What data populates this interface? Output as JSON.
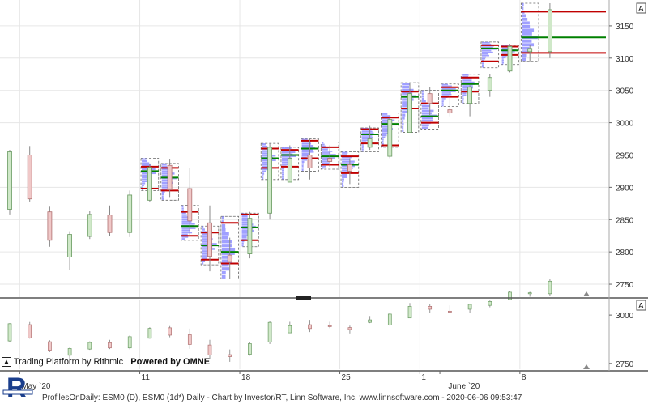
{
  "footer_text": "ProfilesOnDaily: ESM0 (D), ESM0 (1d*) Daily - Chart by Investor/RT, Linn Software, Inc. www.linnsoftware.com - 2020-06-06 09:53:47",
  "brand": {
    "rithmic": "Trading Platform by Rithmic",
    "omne": "Powered by OMNE"
  },
  "logo_letter": "R",
  "colors": {
    "up": "#cfe8c8",
    "down": "#f0c8c8",
    "profile": "#8080ff",
    "poc": "#008000",
    "va": "#c00000",
    "grid": "#e6e6e6"
  },
  "chart_data": [
    {
      "type": "candlestick",
      "ylim": [
        2730,
        3190
      ],
      "yticks": [
        2750,
        2800,
        2850,
        2900,
        2950,
        3000,
        3050,
        3100,
        3150
      ],
      "xlabels": [
        {
          "label": "May `20",
          "idx": 1
        },
        {
          "label": "11",
          "idx": 7
        },
        {
          "label": "18",
          "idx": 12
        },
        {
          "label": "25",
          "idx": 17
        },
        {
          "label": "1",
          "idx": 21
        },
        {
          "label": "June `20",
          "idx": 22
        },
        {
          "label": "8",
          "idx": 26
        }
      ],
      "candles": [
        {
          "o": 2866,
          "h": 2958,
          "l": 2858,
          "c": 2955
        },
        {
          "o": 2950,
          "h": 2964,
          "l": 2878,
          "c": 2882
        },
        {
          "o": 2862,
          "h": 2870,
          "l": 2808,
          "c": 2818
        },
        {
          "o": 2792,
          "h": 2832,
          "l": 2772,
          "c": 2827
        },
        {
          "o": 2824,
          "h": 2864,
          "l": 2820,
          "c": 2858
        },
        {
          "o": 2857,
          "h": 2872,
          "l": 2824,
          "c": 2830
        },
        {
          "o": 2830,
          "h": 2895,
          "l": 2823,
          "c": 2888
        },
        {
          "o": 2880,
          "h": 2937,
          "l": 2878,
          "c": 2931
        },
        {
          "o": 2934,
          "h": 2943,
          "l": 2885,
          "c": 2896
        },
        {
          "o": 2898,
          "h": 2930,
          "l": 2825,
          "c": 2848
        },
        {
          "o": 2845,
          "h": 2872,
          "l": 2770,
          "c": 2793
        },
        {
          "o": 2795,
          "h": 2822,
          "l": 2758,
          "c": 2785
        },
        {
          "o": 2797,
          "h": 2862,
          "l": 2790,
          "c": 2852
        },
        {
          "o": 2860,
          "h": 2968,
          "l": 2850,
          "c": 2962
        },
        {
          "o": 2908,
          "h": 2965,
          "l": 2908,
          "c": 2945
        },
        {
          "o": 2950,
          "h": 2975,
          "l": 2912,
          "c": 2930
        },
        {
          "o": 2945,
          "h": 2965,
          "l": 2932,
          "c": 2940
        },
        {
          "o": 2935,
          "h": 2945,
          "l": 2905,
          "c": 2925
        },
        {
          "o": 2962,
          "h": 2995,
          "l": 2958,
          "c": 2975
        },
        {
          "o": 2948,
          "h": 3010,
          "l": 2945,
          "c": 3005
        },
        {
          "o": 2985,
          "h": 3062,
          "l": 2985,
          "c": 3045
        },
        {
          "o": 3045,
          "h": 3055,
          "l": 3012,
          "c": 3030
        },
        {
          "o": 3020,
          "h": 3050,
          "l": 3010,
          "c": 3015
        },
        {
          "o": 3030,
          "h": 3058,
          "l": 3010,
          "c": 3055
        },
        {
          "o": 3050,
          "h": 3075,
          "l": 3040,
          "c": 3070
        },
        {
          "o": 3080,
          "h": 3122,
          "l": 3078,
          "c": 3118
        },
        {
          "o": 3110,
          "h": 3120,
          "l": 3095,
          "c": 3115
        },
        {
          "o": 3110,
          "h": 3185,
          "l": 3100,
          "c": 3175
        }
      ],
      "profiles": [
        {
          "idx": 7,
          "top": 2945,
          "bot": 2895,
          "vah": 2932,
          "poc": 2925,
          "val": 2898
        },
        {
          "idx": 8,
          "top": 2937,
          "bot": 2880,
          "vah": 2930,
          "poc": 2915,
          "val": 2895
        },
        {
          "idx": 9,
          "top": 2872,
          "bot": 2818,
          "vah": 2862,
          "poc": 2840,
          "val": 2825
        },
        {
          "idx": 10,
          "top": 2840,
          "bot": 2780,
          "vah": 2830,
          "poc": 2810,
          "val": 2788
        },
        {
          "idx": 11,
          "top": 2855,
          "bot": 2758,
          "vah": 2845,
          "poc": 2800,
          "val": 2782
        },
        {
          "idx": 12,
          "top": 2860,
          "bot": 2808,
          "vah": 2858,
          "poc": 2838,
          "val": 2818
        },
        {
          "idx": 13,
          "top": 2968,
          "bot": 2912,
          "vah": 2960,
          "poc": 2945,
          "val": 2930
        },
        {
          "idx": 14,
          "top": 2962,
          "bot": 2912,
          "vah": 2958,
          "poc": 2950,
          "val": 2932
        },
        {
          "idx": 15,
          "top": 2975,
          "bot": 2925,
          "vah": 2972,
          "poc": 2960,
          "val": 2945
        },
        {
          "idx": 16,
          "top": 2970,
          "bot": 2928,
          "vah": 2962,
          "poc": 2948,
          "val": 2935
        },
        {
          "idx": 17,
          "top": 2955,
          "bot": 2900,
          "vah": 2948,
          "poc": 2935,
          "val": 2922
        },
        {
          "idx": 18,
          "top": 2992,
          "bot": 2955,
          "vah": 2990,
          "poc": 2982,
          "val": 2968
        },
        {
          "idx": 19,
          "top": 3015,
          "bot": 2962,
          "vah": 3008,
          "poc": 2998,
          "val": 2965
        },
        {
          "idx": 20,
          "top": 3062,
          "bot": 2985,
          "vah": 3048,
          "poc": 3040,
          "val": 3022
        },
        {
          "idx": 21,
          "top": 3050,
          "bot": 2990,
          "vah": 3030,
          "poc": 3010,
          "val": 3000
        },
        {
          "idx": 22,
          "top": 3060,
          "bot": 3025,
          "vah": 3055,
          "poc": 3050,
          "val": 3040
        },
        {
          "idx": 23,
          "top": 3075,
          "bot": 3030,
          "vah": 3070,
          "poc": 3060,
          "val": 3048
        },
        {
          "idx": 24,
          "top": 3125,
          "bot": 3085,
          "vah": 3120,
          "poc": 3115,
          "val": 3095
        },
        {
          "idx": 25,
          "top": 3120,
          "bot": 3090,
          "vah": 3118,
          "poc": 3112,
          "val": 3105
        },
        {
          "idx": 26,
          "top": 3185,
          "bot": 3095,
          "vah": 3172,
          "poc": 3132,
          "val": 3108
        }
      ],
      "panel_badge": "A"
    },
    {
      "type": "candlestick",
      "ylim": [
        2720,
        3080
      ],
      "yticks": [
        2750,
        3000
      ],
      "panel_badge": "A"
    }
  ]
}
